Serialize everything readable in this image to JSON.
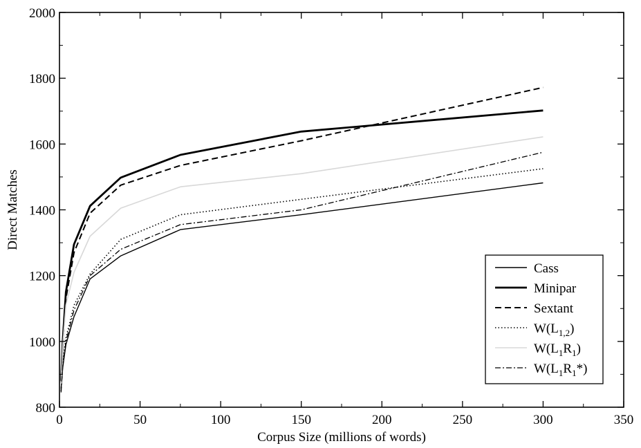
{
  "chart_data": {
    "type": "line",
    "title": "",
    "xlabel": "Corpus Size (millions of words)",
    "ylabel": "Direct Matches",
    "xlim": [
      0,
      350
    ],
    "ylim": [
      800,
      2000
    ],
    "xticks": [
      0,
      50,
      100,
      150,
      200,
      250,
      300,
      350
    ],
    "yticks": [
      800,
      1000,
      1200,
      1400,
      1600,
      1800,
      2000
    ],
    "xtick_labels": [
      "0",
      "50",
      "100",
      "150",
      "200",
      "250",
      "300",
      "350"
    ],
    "ytick_labels": [
      "800",
      "1000",
      "1200",
      "1400",
      "1600",
      "1800",
      "2000"
    ],
    "grid": false,
    "legend_position": "bottom-right",
    "series": [
      {
        "name": "Cass",
        "label_parts": [
          {
            "t": "Cass"
          }
        ],
        "style": "solid-thin",
        "color": "#000000",
        "x": [
          1,
          2,
          4,
          9,
          19,
          38,
          75,
          150,
          300
        ],
        "y": [
          855,
          920,
          990,
          1075,
          1190,
          1260,
          1340,
          1385,
          1482
        ]
      },
      {
        "name": "Minipar",
        "label_parts": [
          {
            "t": "Minipar"
          }
        ],
        "style": "solid-thick",
        "color": "#000000",
        "x": [
          1,
          2,
          4,
          9,
          19,
          38,
          75,
          150,
          300
        ],
        "y": [
          880,
          1000,
          1150,
          1295,
          1412,
          1498,
          1567,
          1638,
          1702
        ]
      },
      {
        "name": "Sextant",
        "label_parts": [
          {
            "t": "Sextant"
          }
        ],
        "style": "dashed",
        "color": "#000000",
        "x": [
          1,
          2,
          4,
          9,
          19,
          38,
          75,
          150,
          300
        ],
        "y": [
          875,
          985,
          1130,
          1270,
          1390,
          1475,
          1535,
          1610,
          1772
        ]
      },
      {
        "name": "W(L1,2)",
        "label_parts": [
          {
            "t": "W(L"
          },
          {
            "t": "1,2",
            "sub": true
          },
          {
            "t": ")"
          }
        ],
        "style": "dotted",
        "color": "#000000",
        "x": [
          1,
          2,
          4,
          9,
          19,
          38,
          75,
          150,
          300
        ],
        "y": [
          850,
          935,
          1010,
          1110,
          1205,
          1310,
          1385,
          1432,
          1525
        ]
      },
      {
        "name": "W(L1R1)",
        "label_parts": [
          {
            "t": "W(L"
          },
          {
            "t": "1",
            "sub": true
          },
          {
            "t": "R"
          },
          {
            "t": "1",
            "sub": true
          },
          {
            "t": ")"
          }
        ],
        "style": "solid-light",
        "color": "#d8d8d8",
        "x": [
          1,
          2,
          4,
          9,
          19,
          38,
          75,
          150,
          300
        ],
        "y": [
          870,
          985,
          1110,
          1210,
          1320,
          1405,
          1470,
          1510,
          1622
        ]
      },
      {
        "name": "W(L1R1*)",
        "label_parts": [
          {
            "t": "W(L"
          },
          {
            "t": "1",
            "sub": true
          },
          {
            "t": "R"
          },
          {
            "t": "1",
            "sub": true
          },
          {
            "t": "*)"
          }
        ],
        "style": "dash-dot",
        "color": "#000000",
        "x": [
          1,
          2,
          4,
          9,
          19,
          38,
          75,
          150,
          300
        ],
        "y": [
          845,
          925,
          1000,
          1095,
          1200,
          1280,
          1355,
          1400,
          1575
        ]
      }
    ]
  }
}
